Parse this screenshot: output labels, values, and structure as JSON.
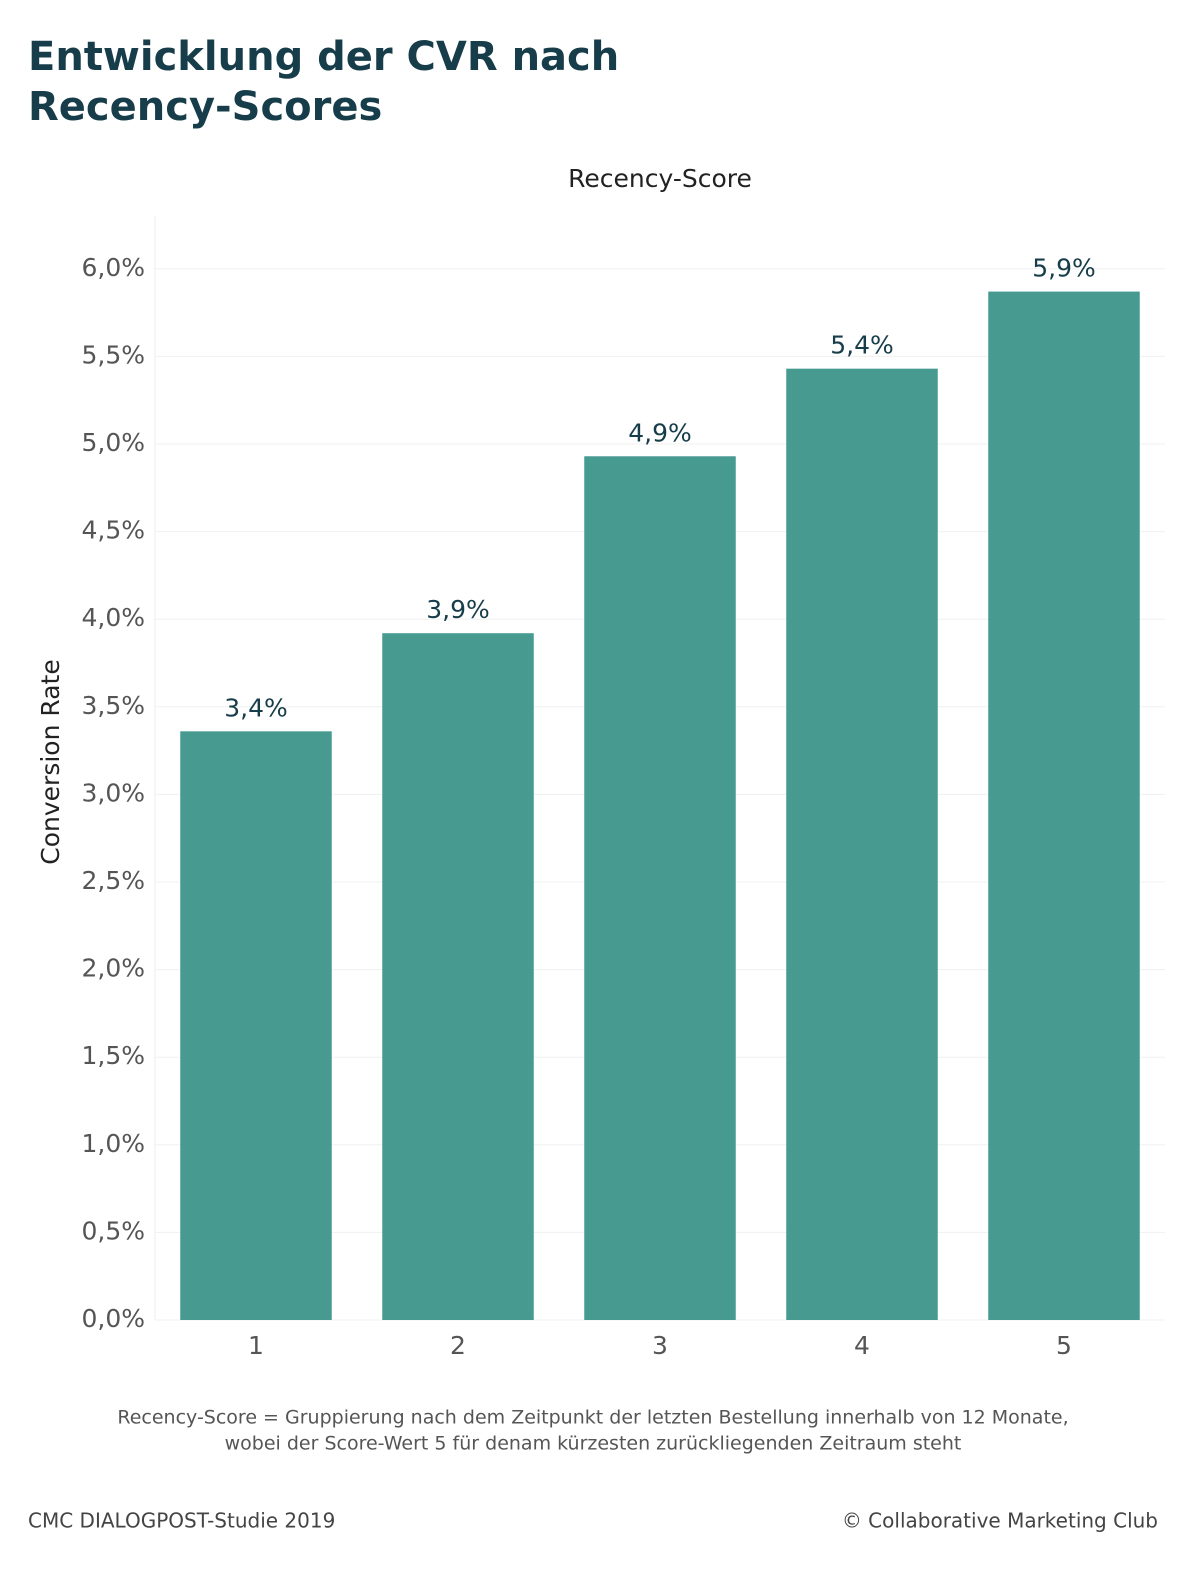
{
  "chart_data": {
    "type": "bar",
    "title": "Entwicklung der CVR nach Recency-Scores",
    "x_label": "Recency-Score",
    "y_label": "Conversion Rate",
    "categories": [
      "1",
      "2",
      "3",
      "4",
      "5"
    ],
    "values": [
      3.36,
      3.92,
      4.93,
      5.43,
      5.87
    ],
    "value_labels": [
      "3,4%",
      "3,9%",
      "4,9%",
      "5,4%",
      "5,9%"
    ],
    "color": "#469a90",
    "ylim": [
      0,
      6.3
    ],
    "yticks": [
      {
        "value": 0,
        "label": "0,0%"
      },
      {
        "value": 0.5,
        "label": "0,5%"
      },
      {
        "value": 1,
        "label": "1,0%"
      },
      {
        "value": 1.5,
        "label": "1,5%"
      },
      {
        "value": 2,
        "label": "2,0%"
      },
      {
        "value": 2.5,
        "label": "2,5%"
      },
      {
        "value": 3,
        "label": "3,0%"
      },
      {
        "value": 3.5,
        "label": "3,5%"
      },
      {
        "value": 4,
        "label": "4,0%"
      },
      {
        "value": 4.5,
        "label": "4,5%"
      },
      {
        "value": 5,
        "label": "5,0%"
      },
      {
        "value": 5.5,
        "label": "5,5%"
      },
      {
        "value": 6,
        "label": "6,0%"
      }
    ],
    "grid": true,
    "note": [
      "Recency-Score = Gruppierung nach dem Zeitpunkt der letzten Bestellung innerhalb von 12 Monate,",
      "wobei der Score-Wert 5 für denam kürzesten zurückliegenden Zeitraum steht"
    ],
    "source": "CMC DIALOGPOST-Studie 2019",
    "copyright": "© Collaborative Marketing Club"
  }
}
